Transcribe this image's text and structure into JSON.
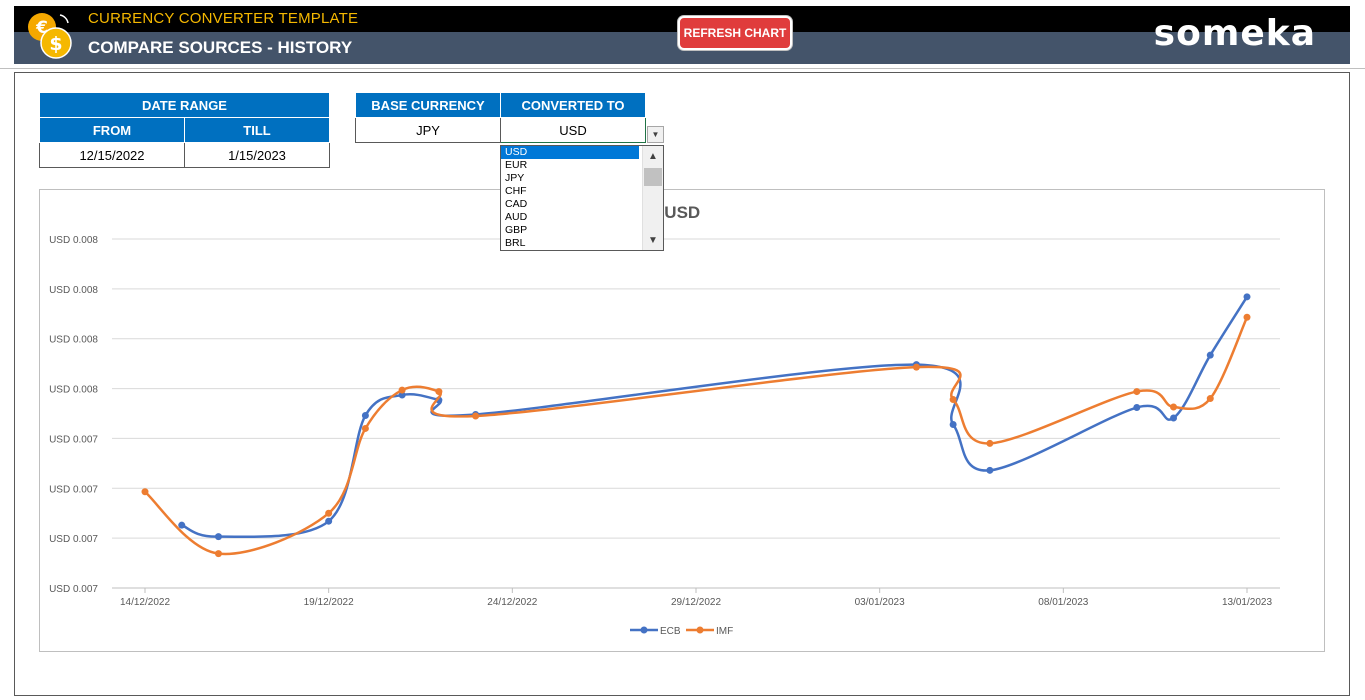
{
  "header": {
    "app_title": "CURRENCY CONVERTER TEMPLATE",
    "page_title": "COMPARE SOURCES - HISTORY",
    "refresh_label": "REFRESH CHART",
    "brand": "someka"
  },
  "date_range": {
    "title": "DATE RANGE",
    "from_label": "FROM",
    "till_label": "TILL",
    "from_value": "12/15/2022",
    "till_value": "1/15/2023"
  },
  "currency": {
    "base_label": "BASE CURRENCY",
    "converted_label": "CONVERTED TO",
    "base_value": "JPY",
    "converted_value": "USD"
  },
  "dropdown": {
    "options": [
      "USD",
      "EUR",
      "JPY",
      "CHF",
      "CAD",
      "AUD",
      "GBP",
      "BRL"
    ],
    "selected": "USD"
  },
  "chart_data": {
    "type": "line",
    "title": "Y to USD",
    "y_tick_labels": [
      "USD 0.007",
      "USD 0.007",
      "USD 0.007",
      "USD 0.007",
      "USD 0.008",
      "USD 0.008",
      "USD 0.008",
      "USD 0.008"
    ],
    "x_tick_labels": [
      "14/12/2022",
      "19/12/2022",
      "24/12/2022",
      "29/12/2022",
      "03/01/2023",
      "08/01/2023",
      "13/01/2023"
    ],
    "x_start": "14/12/2022",
    "x_ticks": [
      0,
      5,
      10,
      15,
      20,
      25,
      30
    ],
    "ylim": [
      0.0072,
      0.0079
    ],
    "grid": true,
    "legend": "bottom-center",
    "series": [
      {
        "name": "ECB",
        "color": "#4472c4",
        "x": [
          1,
          2,
          5,
          6,
          7,
          8,
          9,
          21,
          22,
          23,
          27,
          28,
          29,
          30
        ],
        "y": [
          0.007326,
          0.007303,
          0.007334,
          0.007546,
          0.007587,
          0.007577,
          0.007548,
          0.007648,
          0.007528,
          0.007436,
          0.007562,
          0.007541,
          0.007667,
          0.007784
        ]
      },
      {
        "name": "IMF",
        "color": "#ed7d31",
        "x": [
          0,
          2,
          5,
          6,
          7,
          8,
          9,
          21,
          22,
          23,
          27,
          28,
          29,
          30
        ],
        "y": [
          0.007393,
          0.007269,
          0.00735,
          0.00752,
          0.007597,
          0.007594,
          0.007545,
          0.007643,
          0.007578,
          0.00749,
          0.007594,
          0.007563,
          0.00758,
          0.007743
        ]
      }
    ]
  }
}
